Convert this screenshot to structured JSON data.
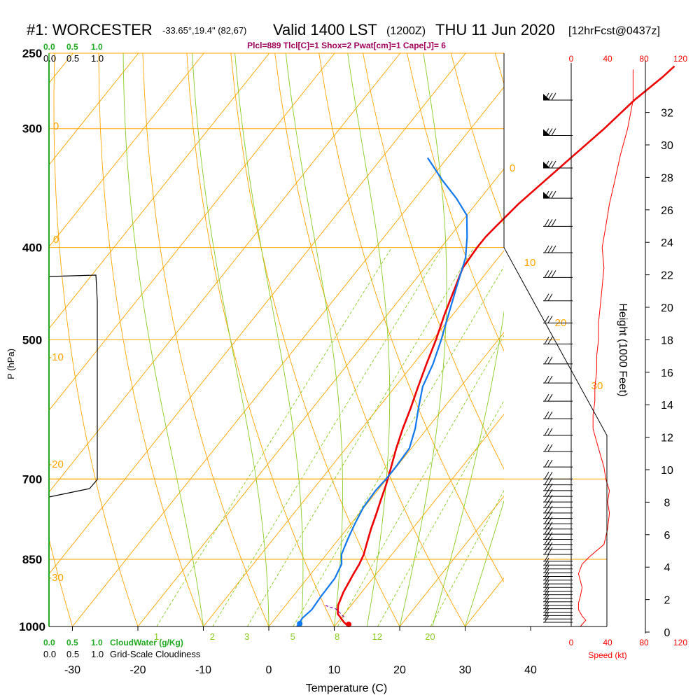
{
  "header": {
    "station": "#1: WORCESTER",
    "coords": "-33.65°,19.4\" (82,67)",
    "valid": "Valid 1400 LST",
    "utc": "(1200Z)",
    "date": "THU 11 Jun 2020",
    "forecast": "[12hrFcst@0437z]"
  },
  "stats_line": "Plcl=889 Tlcl[C]=1 Shox=2 Pwat[cm]=1 Cape[J]= 6",
  "cloudwater_ticks": [
    "0.0",
    "0.5",
    "1.0"
  ],
  "cloudiness_ticks": [
    "0.0",
    "0.5",
    "1.0"
  ],
  "cloudwater_label": "CloudWater (g/Kg)",
  "cloudiness_label": "Grid-Scale Cloudiness",
  "speed_label": "Speed (kt)",
  "colors": {
    "temperature": "#ee0000",
    "dewpoint": "#1177ee",
    "isobar": "#ffa500",
    "mixing_ratio": "#88cc22",
    "cloud": "#000000",
    "speed": "#ff0000"
  },
  "chart_data": {
    "type": "line",
    "title": "Skew-T log-P sounding",
    "xlabel": "Temperature (C)",
    "ylabel": "P (hPa)",
    "y2label": "Height (1000 Feet)",
    "x_ticks": [
      -30,
      -20,
      -10,
      0,
      10,
      20,
      30,
      40
    ],
    "p_ticks": [
      250,
      300,
      400,
      500,
      700,
      850,
      1000
    ],
    "height_ticks_kft": [
      0,
      2,
      4,
      6,
      8,
      10,
      12,
      14,
      16,
      18,
      20,
      22,
      24,
      26,
      28,
      30,
      32
    ],
    "speed_ticks_kt": [
      0,
      40,
      80,
      120
    ],
    "isotherm_labels": [
      "0",
      "10",
      "20",
      "30"
    ],
    "dry_adiabat_labels": [
      "0",
      "0",
      "-10",
      "-20",
      "-30"
    ],
    "mixing_ratio_labels": [
      "1",
      "2",
      "3",
      "5",
      "8",
      "12",
      "20"
    ],
    "series": [
      {
        "name": "Temperature",
        "points": [
          [
            12.2,
            1000
          ],
          [
            11.0,
            990
          ],
          [
            9.0,
            970
          ],
          [
            8.0,
            950
          ],
          [
            7.2,
            920
          ],
          [
            6.5,
            880
          ],
          [
            6.2,
            860
          ],
          [
            5.7,
            840
          ],
          [
            4.9,
            820
          ],
          [
            3.7,
            790
          ],
          [
            2.6,
            760
          ],
          [
            1.8,
            740
          ],
          [
            0.6,
            710
          ],
          [
            -0.8,
            680
          ],
          [
            -2.3,
            650
          ],
          [
            -3.7,
            620
          ],
          [
            -5.0,
            590
          ],
          [
            -6.5,
            560
          ],
          [
            -8.0,
            530
          ],
          [
            -9.5,
            500
          ],
          [
            -11.3,
            470
          ],
          [
            -13.0,
            440
          ],
          [
            -14.2,
            420
          ],
          [
            -14.5,
            400
          ],
          [
            -14.5,
            390
          ],
          [
            -14.2,
            380
          ],
          [
            -13.5,
            360
          ],
          [
            -12.3,
            340
          ],
          [
            -11.0,
            320
          ],
          [
            -9.6,
            300
          ],
          [
            -8.5,
            280
          ],
          [
            -7.0,
            265
          ],
          [
            -6.5,
            258
          ]
        ]
      },
      {
        "name": "Dewpoint",
        "points": [
          [
            4.3,
            1000
          ],
          [
            4.1,
            980
          ],
          [
            4.5,
            960
          ],
          [
            4.3,
            930
          ],
          [
            4.2,
            890
          ],
          [
            3.5,
            860
          ],
          [
            2.3,
            840
          ],
          [
            1.4,
            810
          ],
          [
            0.6,
            780
          ],
          [
            -0.1,
            750
          ],
          [
            -0.3,
            720
          ],
          [
            -0.1,
            700
          ],
          [
            -0.1,
            680
          ],
          [
            -0.3,
            650
          ],
          [
            -1.8,
            620
          ],
          [
            -3.8,
            590
          ],
          [
            -5.8,
            560
          ],
          [
            -7.0,
            530
          ],
          [
            -8.7,
            500
          ],
          [
            -10.7,
            470
          ],
          [
            -12.8,
            440
          ],
          [
            -15.0,
            410
          ],
          [
            -17.3,
            390
          ],
          [
            -20.0,
            370
          ],
          [
            -23.7,
            355
          ],
          [
            -28.0,
            340
          ],
          [
            -33.0,
            322
          ]
        ]
      },
      {
        "name": "Wind speed (kt)",
        "points": [
          [
            5,
            1000
          ],
          [
            8,
            985
          ],
          [
            6,
            975
          ],
          [
            4,
            960
          ],
          [
            4,
            945
          ],
          [
            5,
            930
          ],
          [
            6,
            910
          ],
          [
            4,
            880
          ],
          [
            6,
            860
          ],
          [
            10,
            845
          ],
          [
            18,
            820
          ],
          [
            20,
            790
          ],
          [
            21,
            760
          ],
          [
            20,
            740
          ],
          [
            21,
            720
          ],
          [
            19,
            700
          ],
          [
            18,
            680
          ],
          [
            16,
            660
          ],
          [
            14,
            640
          ],
          [
            12,
            620
          ],
          [
            12,
            600
          ],
          [
            13,
            580
          ],
          [
            13,
            560
          ],
          [
            14,
            540
          ],
          [
            14,
            520
          ],
          [
            15,
            500
          ],
          [
            15,
            480
          ],
          [
            16,
            460
          ],
          [
            17,
            440
          ],
          [
            18,
            420
          ],
          [
            17,
            400
          ],
          [
            19,
            380
          ],
          [
            21,
            360
          ],
          [
            24,
            340
          ],
          [
            27,
            320
          ],
          [
            31,
            300
          ],
          [
            34,
            280
          ],
          [
            34,
            260
          ]
        ]
      }
    ]
  }
}
